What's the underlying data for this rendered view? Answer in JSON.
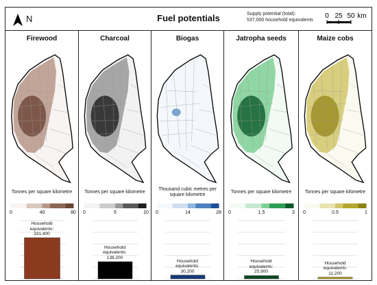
{
  "header": {
    "title": "Fuel potentials",
    "north_label": "N",
    "supply_line1": "Supply potential (total):",
    "supply_line2": "537,000 household equivalents",
    "scale_labels": [
      "0",
      "25",
      "50",
      "km"
    ]
  },
  "panels": [
    {
      "name": "Firewood",
      "units": "Tonnes per square kilometre",
      "ramp": [
        "#f7f4f2",
        "#d9c7bd",
        "#b8978a",
        "#8c6656",
        "#6b4536"
      ],
      "tick_labels": [
        "0",
        "40",
        "80"
      ],
      "hh_label": "Household equivalents:",
      "hh_value": "331,400",
      "hh_fraction": 1.0,
      "bar_color": "#8b3a1e"
    },
    {
      "name": "Charcoal",
      "units": "Tonnes per square kilometre",
      "ramp": [
        "#f2f2f2",
        "#cccccc",
        "#999999",
        "#5a5a5a",
        "#1e1e1e"
      ],
      "tick_labels": [
        "0",
        "5",
        "10"
      ],
      "hh_label": "Household equivalents:",
      "hh_value": "138,200",
      "hh_fraction": 0.417,
      "bar_color": "#000000"
    },
    {
      "name": "Biogas",
      "units": "Thousand cubic metres per square kilometre",
      "ramp": [
        "#f4f8fc",
        "#cfe0f0",
        "#8fb6dc",
        "#4b82bf",
        "#1f4e99"
      ],
      "tick_labels": [
        "0",
        "14",
        "28"
      ],
      "hh_label": "Household equivalents:",
      "hh_value": "30,200",
      "hh_fraction": 0.091,
      "bar_color": "#143b7a"
    },
    {
      "name": "Jatropha seeds",
      "units": "Tonnes per square kilometre",
      "ramp": [
        "#f2faf4",
        "#c5e8cf",
        "#7fcf95",
        "#2f9e55",
        "#0c5a2a"
      ],
      "tick_labels": [
        "0",
        "1.5",
        "3"
      ],
      "hh_label": "Household equivalents:",
      "hh_value": "25,900",
      "hh_fraction": 0.078,
      "bar_color": "#0d4a22"
    },
    {
      "name": "Maize cobs",
      "units": "Tonnes per square kilometre",
      "ramp": [
        "#fbfaf0",
        "#e9e3b0",
        "#d2c66a",
        "#b6a630",
        "#8f8210"
      ],
      "tick_labels": [
        "0",
        "0.5",
        "1"
      ],
      "hh_label": "Household equivalents:",
      "hh_value": "11,200",
      "hh_fraction": 0.034,
      "bar_color": "#b5a629"
    }
  ]
}
